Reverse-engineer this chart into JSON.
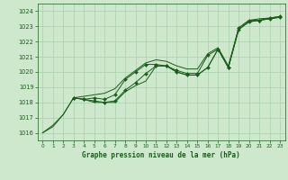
{
  "bg_color": "#cde8cd",
  "grid_color": "#aacfaa",
  "line_color": "#1a5c1a",
  "xlabel": "Graphe pression niveau de la mer (hPa)",
  "xlabel_color": "#1a5c1a",
  "xlim": [
    -0.5,
    23.5
  ],
  "ylim": [
    1015.5,
    1024.5
  ],
  "yticks": [
    1016,
    1017,
    1018,
    1019,
    1020,
    1021,
    1022,
    1023,
    1024
  ],
  "xticks": [
    0,
    1,
    2,
    3,
    4,
    5,
    6,
    7,
    8,
    9,
    10,
    11,
    12,
    13,
    14,
    15,
    16,
    17,
    18,
    19,
    20,
    21,
    22,
    23
  ],
  "line1": {
    "x": [
      0,
      1,
      2,
      3,
      4,
      5,
      6,
      7,
      8,
      9,
      10,
      11,
      12,
      13,
      14,
      15,
      16,
      17,
      18,
      19,
      20,
      21,
      22,
      23
    ],
    "y": [
      1016.0,
      1016.4,
      1017.2,
      1018.3,
      1018.2,
      1018.0,
      1018.0,
      1018.0,
      1018.7,
      1019.1,
      1019.4,
      1020.4,
      1020.4,
      1020.0,
      1019.8,
      1019.8,
      1020.3,
      1021.5,
      1020.3,
      1022.8,
      1023.3,
      1023.4,
      1023.5,
      1023.6
    ],
    "has_markers": false
  },
  "line2": {
    "x": [
      0,
      1,
      2,
      3,
      4,
      5,
      6,
      7,
      8,
      9,
      10,
      11,
      12,
      13,
      14,
      15,
      16,
      17,
      18,
      19,
      20,
      21,
      22,
      23
    ],
    "y": [
      1016.0,
      1016.5,
      1017.2,
      1018.3,
      1018.4,
      1018.5,
      1018.6,
      1018.9,
      1019.6,
      1020.1,
      1020.6,
      1020.8,
      1020.7,
      1020.4,
      1020.2,
      1020.2,
      1021.2,
      1021.6,
      1020.4,
      1022.9,
      1023.4,
      1023.5,
      1023.55,
      1023.65
    ],
    "has_markers": false
  },
  "line3": {
    "x": [
      3,
      4,
      5,
      6,
      7,
      8,
      9,
      10,
      11,
      12,
      13,
      14,
      15,
      16,
      17,
      18,
      19,
      20,
      21,
      22,
      23
    ],
    "y": [
      1018.3,
      1018.2,
      1018.1,
      1018.0,
      1018.1,
      1018.8,
      1019.3,
      1019.9,
      1020.4,
      1020.4,
      1020.0,
      1019.8,
      1019.8,
      1020.3,
      1021.5,
      1020.3,
      1022.8,
      1023.3,
      1023.4,
      1023.5,
      1023.6
    ],
    "has_markers": true
  },
  "line4": {
    "x": [
      3,
      4,
      5,
      6,
      7,
      8,
      9,
      10,
      11,
      12,
      13,
      14,
      15,
      16,
      17,
      18,
      19,
      20,
      21,
      22,
      23
    ],
    "y": [
      1018.3,
      1018.2,
      1018.3,
      1018.2,
      1018.5,
      1019.5,
      1020.0,
      1020.5,
      1020.5,
      1020.4,
      1020.1,
      1019.9,
      1019.9,
      1021.1,
      1021.5,
      1020.3,
      1022.9,
      1023.4,
      1023.4,
      1023.55,
      1023.65
    ],
    "has_markers": true
  }
}
